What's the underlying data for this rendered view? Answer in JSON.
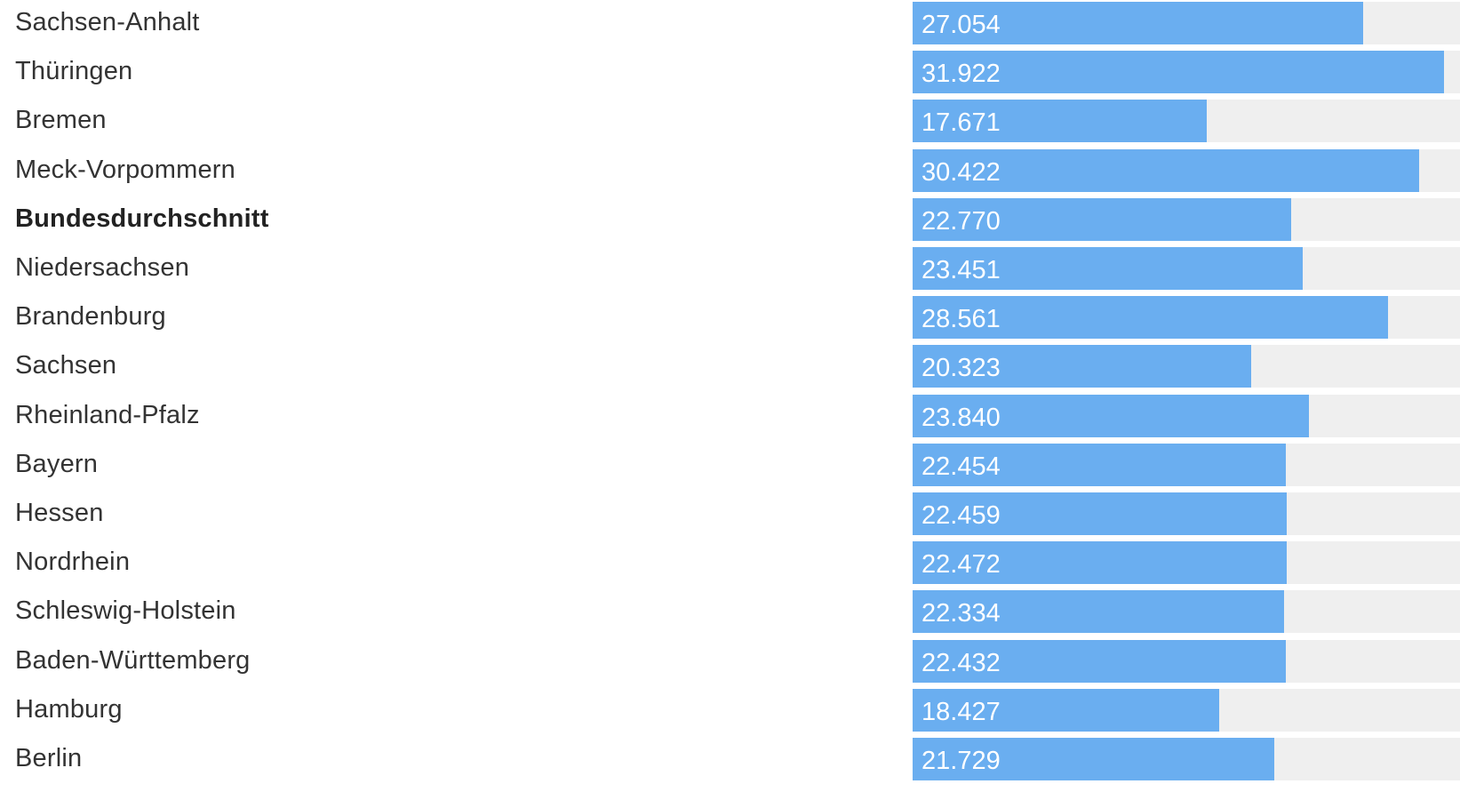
{
  "chart_data": {
    "type": "bar",
    "orientation": "horizontal",
    "categories": [
      "Sachsen-Anhalt",
      "Thüringen",
      "Bremen",
      "Meck-Vorpommern",
      "Bundesdurchschnitt",
      "Niedersachsen",
      "Brandenburg",
      "Sachsen",
      "Rheinland-Pfalz",
      "Bayern",
      "Hessen",
      "Nordrhein",
      "Schleswig-Holstein",
      "Baden-Württemberg",
      "Hamburg",
      "Berlin"
    ],
    "values": [
      27054,
      31922,
      17671,
      30422,
      22770,
      23451,
      28561,
      20323,
      23840,
      22454,
      22459,
      22472,
      22334,
      22432,
      18427,
      21729
    ],
    "value_labels": [
      "27.054",
      "31.922",
      "17.671",
      "30.422",
      "22.770",
      "23.451",
      "28.561",
      "20.323",
      "23.840",
      "22.454",
      "22.459",
      "22.472",
      "22.334",
      "22.432",
      "18.427",
      "21.729"
    ],
    "highlighted": [
      "Bundesdurchschnitt"
    ],
    "xlim": [
      0,
      32900
    ],
    "grid": false,
    "legend": "none",
    "colors": {
      "bar": "#6aaef0",
      "track": "#efefef",
      "value_text": "#ffffff",
      "label_text": "#333333"
    }
  }
}
